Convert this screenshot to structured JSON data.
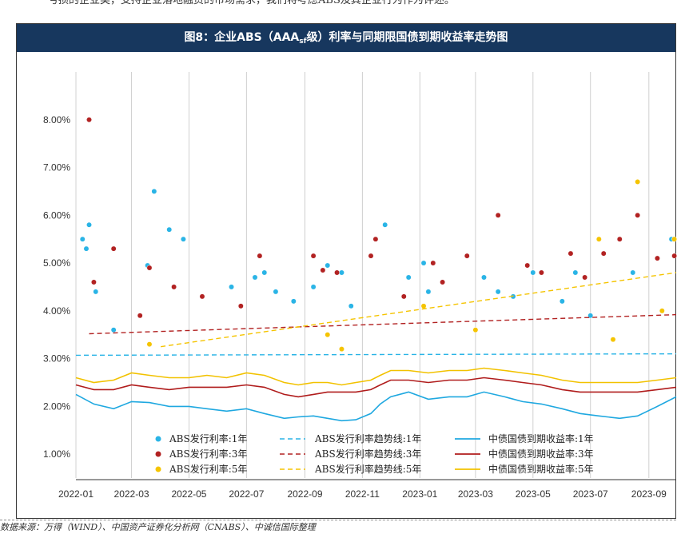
{
  "top_text": "亏损的企业类，支持企业落地融资的市场需求，我们将考虑ABS及其企业行为作为评述。",
  "title": {
    "prefix": "图8：企业ABS（AAA",
    "sub": "sf",
    "suffix": "级）利率与同期限国债到期收益率走势图"
  },
  "source": "数据来源：万得（WIND）、中国资产证券化分析网（CNABS）、中诚信国际整理",
  "colors": {
    "abs_1y": "#2ab4e6",
    "abs_3y": "#b22222",
    "abs_5y": "#f5c400",
    "gov_1y": "#1fa8e0",
    "gov_3y": "#b01c1c",
    "gov_5y": "#f2c200",
    "title_bg": "#17375e"
  },
  "chart_data": {
    "type": "scatter",
    "title": "图8：企业ABS（AAAsf级）利率与同期限国债到期收益率走势图",
    "ylim": [
      0.5,
      9.0
    ],
    "yticks": [
      "1.00%",
      "2.00%",
      "3.00%",
      "4.00%",
      "5.00%",
      "6.00%",
      "7.00%",
      "8.00%"
    ],
    "xticks": [
      "2022-01",
      "2022-03",
      "2022-05",
      "2022-07",
      "2022-09",
      "2022-11",
      "2023-01",
      "2023-03",
      "2023-05",
      "2023-07",
      "2023-09"
    ],
    "xlim": [
      "2022-01-01",
      "2023-09-30"
    ],
    "grid": "vertical",
    "legend": {
      "position": "bottom",
      "entries": [
        {
          "key": "abs_1y",
          "label": "ABS发行利率:1年",
          "style": "dot"
        },
        {
          "key": "abs_trend_1y",
          "label": "ABS发行利率趋势线:1年",
          "style": "dash"
        },
        {
          "key": "gov_1y",
          "label": "中债国债到期收益率:1年",
          "style": "line"
        },
        {
          "key": "abs_3y",
          "label": "ABS发行利率:3年",
          "style": "dot"
        },
        {
          "key": "abs_trend_3y",
          "label": "ABS发行利率趋势线:3年",
          "style": "dash"
        },
        {
          "key": "gov_3y",
          "label": "中债国债到期收益率:3年",
          "style": "line"
        },
        {
          "key": "abs_5y",
          "label": "ABS发行利率:5年",
          "style": "dot"
        },
        {
          "key": "abs_trend_5y",
          "label": "ABS发行利率趋势线:5年",
          "style": "dash"
        },
        {
          "key": "gov_5y",
          "label": "中债国债到期收益率:5年",
          "style": "line"
        }
      ]
    },
    "trend_lines": {
      "abs_1y": [
        [
          "2022-01-01",
          3.07
        ],
        [
          "2023-09-30",
          3.1
        ]
      ],
      "abs_3y": [
        [
          "2022-01-15",
          3.52
        ],
        [
          "2023-09-30",
          3.92
        ]
      ],
      "abs_5y": [
        [
          "2022-04-01",
          3.25
        ],
        [
          "2023-09-30",
          4.8
        ]
      ]
    },
    "gov_yields": {
      "dates": [
        "2022-01-01",
        "2022-01-20",
        "2022-02-10",
        "2022-03-01",
        "2022-03-20",
        "2022-04-10",
        "2022-05-01",
        "2022-05-20",
        "2022-06-10",
        "2022-07-01",
        "2022-07-20",
        "2022-08-10",
        "2022-08-25",
        "2022-09-10",
        "2022-09-25",
        "2022-10-10",
        "2022-10-25",
        "2022-11-10",
        "2022-11-20",
        "2022-12-01",
        "2022-12-20",
        "2023-01-10",
        "2023-02-01",
        "2023-02-20",
        "2023-03-10",
        "2023-04-01",
        "2023-04-20",
        "2023-05-10",
        "2023-06-01",
        "2023-06-20",
        "2023-07-10",
        "2023-08-01",
        "2023-08-20",
        "2023-09-10",
        "2023-09-30"
      ],
      "gov_1y": [
        2.25,
        2.05,
        1.95,
        2.1,
        2.08,
        2.0,
        2.0,
        1.95,
        1.9,
        1.95,
        1.85,
        1.75,
        1.78,
        1.8,
        1.75,
        1.7,
        1.72,
        1.85,
        2.05,
        2.2,
        2.3,
        2.15,
        2.2,
        2.2,
        2.3,
        2.2,
        2.1,
        2.05,
        1.95,
        1.85,
        1.8,
        1.75,
        1.8,
        2.0,
        2.2
      ],
      "gov_3y": [
        2.45,
        2.35,
        2.35,
        2.45,
        2.4,
        2.35,
        2.4,
        2.4,
        2.4,
        2.45,
        2.4,
        2.25,
        2.2,
        2.25,
        2.3,
        2.3,
        2.3,
        2.35,
        2.45,
        2.55,
        2.55,
        2.5,
        2.55,
        2.55,
        2.6,
        2.55,
        2.5,
        2.45,
        2.35,
        2.3,
        2.3,
        2.3,
        2.3,
        2.35,
        2.4
      ],
      "gov_5y": [
        2.6,
        2.5,
        2.55,
        2.7,
        2.65,
        2.6,
        2.6,
        2.65,
        2.6,
        2.7,
        2.65,
        2.5,
        2.45,
        2.5,
        2.5,
        2.45,
        2.5,
        2.55,
        2.65,
        2.75,
        2.75,
        2.7,
        2.75,
        2.75,
        2.8,
        2.75,
        2.7,
        2.65,
        2.55,
        2.5,
        2.5,
        2.5,
        2.5,
        2.55,
        2.6
      ]
    },
    "abs_scatter": {
      "abs_1y": [
        [
          "2022-01-08",
          5.5
        ],
        [
          "2022-01-12",
          5.3
        ],
        [
          "2022-01-15",
          5.8
        ],
        [
          "2022-01-22",
          4.4
        ],
        [
          "2022-02-10",
          3.6
        ],
        [
          "2022-03-25",
          6.5
        ],
        [
          "2022-03-18",
          4.95
        ],
        [
          "2022-04-10",
          5.7
        ],
        [
          "2022-04-25",
          5.5
        ],
        [
          "2022-04-15",
          4.5
        ],
        [
          "2022-06-15",
          4.5
        ],
        [
          "2022-07-10",
          4.7
        ],
        [
          "2022-07-20",
          4.8
        ],
        [
          "2022-08-01",
          4.4
        ],
        [
          "2022-08-20",
          4.2
        ],
        [
          "2022-09-10",
          4.5
        ],
        [
          "2022-09-25",
          4.95
        ],
        [
          "2022-10-10",
          4.8
        ],
        [
          "2022-10-20",
          4.1
        ],
        [
          "2022-11-25",
          5.8
        ],
        [
          "2022-12-20",
          4.7
        ],
        [
          "2023-01-05",
          5.0
        ],
        [
          "2023-01-10",
          4.4
        ],
        [
          "2023-03-10",
          4.7
        ],
        [
          "2023-03-25",
          4.4
        ],
        [
          "2023-04-10",
          4.3
        ],
        [
          "2023-05-01",
          4.8
        ],
        [
          "2023-06-01",
          4.2
        ],
        [
          "2023-06-15",
          4.8
        ],
        [
          "2023-07-01",
          3.9
        ],
        [
          "2023-08-15",
          4.8
        ],
        [
          "2023-09-25",
          5.5
        ]
      ],
      "abs_3y": [
        [
          "2022-01-15",
          8.0
        ],
        [
          "2022-02-10",
          5.3
        ],
        [
          "2022-01-20",
          4.6
        ],
        [
          "2022-03-20",
          4.9
        ],
        [
          "2022-03-10",
          3.9
        ],
        [
          "2022-04-15",
          4.5
        ],
        [
          "2022-05-15",
          4.3
        ],
        [
          "2022-06-25",
          4.1
        ],
        [
          "2022-07-15",
          5.15
        ],
        [
          "2022-09-10",
          5.15
        ],
        [
          "2022-09-20",
          4.85
        ],
        [
          "2022-10-05",
          4.8
        ],
        [
          "2022-11-10",
          5.15
        ],
        [
          "2022-11-15",
          5.5
        ],
        [
          "2022-12-15",
          4.3
        ],
        [
          "2023-01-15",
          5.0
        ],
        [
          "2023-01-25",
          4.6
        ],
        [
          "2023-02-20",
          5.15
        ],
        [
          "2023-03-25",
          6.0
        ],
        [
          "2023-04-25",
          4.95
        ],
        [
          "2023-05-10",
          4.8
        ],
        [
          "2023-06-10",
          5.2
        ],
        [
          "2023-06-25",
          4.7
        ],
        [
          "2023-07-15",
          5.2
        ],
        [
          "2023-08-01",
          5.5
        ],
        [
          "2023-08-20",
          6.0
        ],
        [
          "2023-09-10",
          5.1
        ],
        [
          "2023-09-28",
          5.15
        ]
      ],
      "abs_5y": [
        [
          "2022-03-20",
          3.3
        ],
        [
          "2022-09-25",
          3.5
        ],
        [
          "2022-10-10",
          3.2
        ],
        [
          "2023-01-05",
          4.1
        ],
        [
          "2023-03-01",
          3.6
        ],
        [
          "2023-07-10",
          5.5
        ],
        [
          "2023-07-25",
          3.4
        ],
        [
          "2023-08-20",
          6.7
        ],
        [
          "2023-09-15",
          4.0
        ],
        [
          "2023-09-28",
          5.5
        ]
      ]
    }
  }
}
